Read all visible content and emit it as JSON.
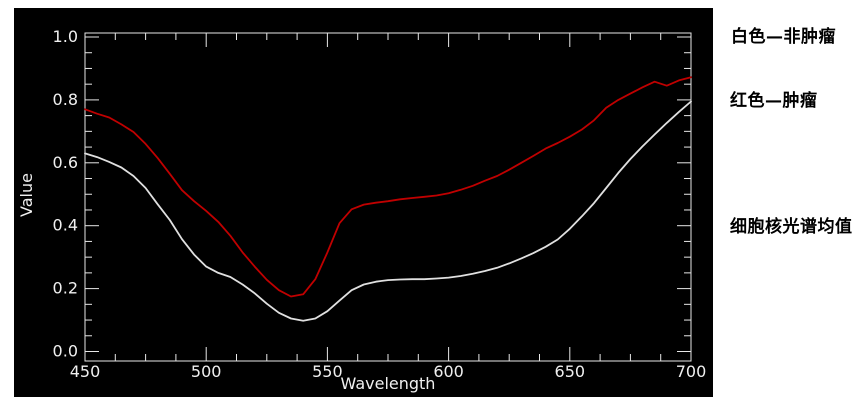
{
  "chart_data": {
    "type": "line",
    "title": "",
    "xlabel": "Wavelength",
    "ylabel": "Value",
    "xlim": [
      450,
      700
    ],
    "ylim": [
      0.0,
      1.0
    ],
    "x_major_ticks": [
      450,
      500,
      550,
      600,
      650,
      700
    ],
    "x_tick_labels": [
      "450",
      "500",
      "550",
      "600",
      "650",
      "700"
    ],
    "x_minor_step": 12.5,
    "y_major_ticks": [
      0.0,
      0.2,
      0.4,
      0.6,
      0.8,
      1.0
    ],
    "y_tick_labels": [
      "0.0",
      "0.2",
      "0.4",
      "0.6",
      "0.8",
      "1.0"
    ],
    "y_minor_step": 0.05,
    "grid": false,
    "legend_position": "outside-right",
    "background": "#000000",
    "axis_color": "#e8e8e8",
    "x": [
      450,
      455,
      460,
      465,
      470,
      475,
      480,
      485,
      490,
      495,
      500,
      505,
      510,
      515,
      520,
      525,
      530,
      535,
      540,
      545,
      550,
      555,
      560,
      565,
      570,
      575,
      580,
      585,
      590,
      595,
      600,
      605,
      610,
      615,
      620,
      625,
      630,
      635,
      640,
      645,
      650,
      655,
      660,
      665,
      670,
      675,
      680,
      685,
      690,
      695,
      700
    ],
    "series": [
      {
        "name": "白色—非肿瘤 (non-tumor)",
        "color": "#e0e0e0",
        "values": [
          0.63,
          0.618,
          0.603,
          0.585,
          0.558,
          0.52,
          0.468,
          0.418,
          0.357,
          0.308,
          0.27,
          0.25,
          0.237,
          0.213,
          0.185,
          0.152,
          0.123,
          0.105,
          0.098,
          0.105,
          0.128,
          0.162,
          0.195,
          0.213,
          0.222,
          0.227,
          0.229,
          0.23,
          0.23,
          0.232,
          0.235,
          0.24,
          0.247,
          0.256,
          0.266,
          0.28,
          0.296,
          0.313,
          0.333,
          0.356,
          0.39,
          0.43,
          0.472,
          0.52,
          0.568,
          0.612,
          0.652,
          0.69,
          0.727,
          0.762,
          0.795
        ]
      },
      {
        "name": "红色—肿瘤 (tumor)",
        "color": "#c00000",
        "values": [
          0.77,
          0.756,
          0.744,
          0.722,
          0.698,
          0.66,
          0.615,
          0.565,
          0.513,
          0.478,
          0.447,
          0.412,
          0.368,
          0.315,
          0.27,
          0.228,
          0.195,
          0.175,
          0.182,
          0.23,
          0.315,
          0.408,
          0.452,
          0.467,
          0.473,
          0.478,
          0.484,
          0.488,
          0.492,
          0.496,
          0.503,
          0.514,
          0.527,
          0.543,
          0.558,
          0.578,
          0.6,
          0.622,
          0.645,
          0.663,
          0.683,
          0.706,
          0.735,
          0.775,
          0.8,
          0.82,
          0.84,
          0.858,
          0.845,
          0.862,
          0.872
        ]
      }
    ]
  },
  "annotations": {
    "legend_white": "白色—非肿瘤",
    "legend_red": "红色—肿瘤",
    "caption": "细胞核光谱均值"
  }
}
